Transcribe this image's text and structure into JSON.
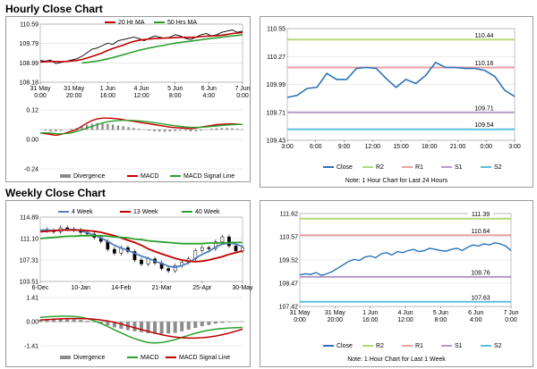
{
  "sections": {
    "hourly_title": "Hourly Close Chart",
    "weekly_title": "Weekly Close Chart",
    "hourly_note": "Note: 1 Hour Chart for Last 24 Hours",
    "weekly_note": "Note: 1 Hour Chart for Last 1 Week"
  },
  "colors": {
    "price": "#000000",
    "ma20": "#c00000",
    "ma50": "#2ca02c",
    "wk4": "#4f81bd",
    "wk13": "#c00000",
    "wk40": "#2ca02c",
    "close": "#2a73b8",
    "r2": "#b5d776",
    "r1": "#e8a0a0",
    "s1": "#b39ac7",
    "s2": "#5bc0de",
    "divergence": "#8c8c8c",
    "macd": "#c00000",
    "signal": "#2ca02c"
  },
  "chart_data": [
    {
      "id": "hourly-price",
      "type": "line",
      "legend": [
        "20 Hr MA",
        "50 Hrs MA"
      ],
      "yticks": [
        "110.59",
        "109.79",
        "108.99",
        "108.18"
      ],
      "ylim": [
        108.18,
        110.59
      ],
      "xticks": [
        "31 May\n0:00",
        "31 May\n20:00",
        "1 Jun\n16:00",
        "4 Jun\n12:00",
        "5 Jun\n8:00",
        "6 Jun\n4:00",
        "7 Jun\n0:00"
      ],
      "series": [
        {
          "name": "Price",
          "values": [
            109.08,
            109.05,
            109.1,
            108.95,
            109.0,
            109.05,
            109.1,
            109.15,
            109.25,
            109.4,
            109.55,
            109.6,
            109.7,
            109.8,
            109.75,
            109.9,
            109.95,
            110.0,
            110.05,
            110.0,
            109.9,
            110.0,
            110.1,
            110.05,
            110.0,
            110.05,
            110.15,
            110.1,
            110.0,
            109.95,
            110.05,
            110.15,
            110.2,
            110.1,
            110.15,
            110.25,
            110.3,
            110.35,
            110.25,
            110.3
          ]
        },
        {
          "name": "20 Hr MA",
          "values": [
            109.02,
            109.03,
            109.04,
            109.04,
            109.03,
            109.04,
            109.06,
            109.08,
            109.12,
            109.18,
            109.25,
            109.32,
            109.4,
            109.5,
            109.58,
            109.65,
            109.72,
            109.8,
            109.87,
            109.92,
            109.95,
            109.97,
            109.99,
            110.0,
            110.01,
            110.02,
            110.03,
            110.04,
            110.04,
            110.04,
            110.05,
            110.07,
            110.09,
            110.1,
            110.11,
            110.13,
            110.16,
            110.2,
            110.22,
            110.24
          ]
        },
        {
          "name": "50 Hrs MA",
          "values": [
            null,
            null,
            null,
            null,
            null,
            null,
            null,
            null,
            108.98,
            109.0,
            109.03,
            109.06,
            109.1,
            109.15,
            109.2,
            109.26,
            109.32,
            109.38,
            109.44,
            109.5,
            109.55,
            109.6,
            109.64,
            109.68,
            109.72,
            109.76,
            109.8,
            109.83,
            109.86,
            109.88,
            109.91,
            109.94,
            109.97,
            110.0,
            110.02,
            110.05,
            110.08,
            110.1,
            110.12,
            110.14
          ]
        }
      ]
    },
    {
      "id": "hourly-macd",
      "type": "bar",
      "legend": [
        "Divergence",
        "MACD",
        "MACD Signal Line"
      ],
      "yticks": [
        "0.12",
        "0.00",
        "-0.24"
      ],
      "ylim": [
        -0.24,
        0.12
      ],
      "series": [
        {
          "name": "Divergence",
          "values": [
            0.0,
            -0.005,
            -0.01,
            -0.01,
            -0.005,
            0.0,
            0.005,
            0.01,
            0.02,
            0.03,
            0.035,
            0.04,
            0.04,
            0.035,
            0.03,
            0.025,
            0.02,
            0.015,
            0.01,
            0.005,
            0.0,
            -0.005,
            -0.01,
            -0.01,
            -0.012,
            -0.01,
            -0.008,
            -0.005,
            -0.005,
            -0.01,
            -0.008,
            -0.005,
            0.0,
            0.005,
            0.008,
            0.01,
            0.01,
            0.008,
            0.005,
            0.003
          ]
        },
        {
          "name": "MACD",
          "values": [
            -0.02,
            -0.025,
            -0.03,
            -0.035,
            -0.03,
            -0.02,
            -0.01,
            0.0,
            0.02,
            0.04,
            0.055,
            0.065,
            0.07,
            0.07,
            0.068,
            0.065,
            0.06,
            0.055,
            0.05,
            0.045,
            0.04,
            0.035,
            0.03,
            0.025,
            0.02,
            0.015,
            0.012,
            0.01,
            0.008,
            0.005,
            0.01,
            0.015,
            0.02,
            0.025,
            0.03,
            0.032,
            0.034,
            0.035,
            0.033,
            0.03
          ]
        },
        {
          "name": "MACD Signal Line",
          "values": [
            -0.02,
            -0.02,
            -0.022,
            -0.025,
            -0.026,
            -0.024,
            -0.02,
            -0.012,
            -0.002,
            0.01,
            0.02,
            0.03,
            0.04,
            0.048,
            0.052,
            0.055,
            0.056,
            0.056,
            0.055,
            0.053,
            0.05,
            0.046,
            0.042,
            0.037,
            0.032,
            0.027,
            0.023,
            0.019,
            0.016,
            0.013,
            0.013,
            0.014,
            0.016,
            0.019,
            0.022,
            0.025,
            0.028,
            0.03,
            0.031,
            0.031
          ]
        }
      ]
    },
    {
      "id": "hourly-close-24h",
      "type": "line",
      "yticks": [
        "110.55",
        "110.27",
        "109.99",
        "109.71",
        "109.43"
      ],
      "ylim": [
        109.43,
        110.55
      ],
      "xticks": [
        "3:00",
        "6:00",
        "9:00",
        "12:00",
        "15:00",
        "18:00",
        "21:00",
        "0:00",
        "3:00"
      ],
      "levels": [
        {
          "name": "R2",
          "value": 110.44,
          "label": "110.44"
        },
        {
          "name": "R1",
          "value": 110.16,
          "label": "110.16"
        },
        {
          "name": "S1",
          "value": 109.71,
          "label": "109.71"
        },
        {
          "name": "S2",
          "value": 109.54,
          "label": "109.54"
        }
      ],
      "legend": [
        "Close",
        "R2",
        "R1",
        "S1",
        "S2"
      ],
      "series": [
        {
          "name": "Close",
          "values": [
            109.86,
            109.88,
            109.95,
            109.96,
            110.1,
            110.04,
            110.04,
            110.15,
            110.16,
            110.15,
            110.05,
            109.96,
            110.04,
            110.0,
            110.08,
            110.21,
            110.16,
            110.16,
            110.15,
            110.15,
            110.13,
            110.07,
            109.93,
            109.87
          ]
        }
      ]
    },
    {
      "id": "weekly-price",
      "type": "line",
      "legend": [
        "4 Week",
        "13 Week",
        "40 Week"
      ],
      "yticks": [
        "114.89",
        "111.10",
        "107.31",
        "103.51"
      ],
      "ylim": [
        103.51,
        114.89
      ],
      "xticks": [
        "6-Dec",
        "10-Jan",
        "14-Feb",
        "21-Mar",
        "25-Apr",
        "30-May"
      ],
      "series": [
        {
          "name": "Price",
          "values": [
            112.7,
            112.5,
            112.3,
            113.0,
            112.8,
            112.6,
            112.2,
            111.9,
            111.3,
            110.6,
            109.2,
            108.5,
            109.5,
            108.8,
            107.3,
            106.6,
            107.5,
            106.8,
            105.8,
            105.4,
            106.3,
            106.9,
            107.5,
            109.0,
            109.5,
            109.3,
            110.5,
            111.4,
            109.8,
            108.9,
            109.5
          ]
        },
        {
          "name": "4 Week",
          "values": [
            112.6,
            112.6,
            112.5,
            112.6,
            112.7,
            112.7,
            112.5,
            112.1,
            111.7,
            111.2,
            110.6,
            109.9,
            109.4,
            109.0,
            108.5,
            108.0,
            107.6,
            107.1,
            106.7,
            106.2,
            106.0,
            106.3,
            106.8,
            107.6,
            108.3,
            108.8,
            109.6,
            110.1,
            110.3,
            110.1,
            109.7
          ]
        },
        {
          "name": "13 Week",
          "values": [
            112.3,
            112.4,
            112.5,
            112.6,
            112.6,
            112.6,
            112.6,
            112.5,
            112.4,
            112.2,
            111.9,
            111.6,
            111.2,
            110.8,
            110.4,
            109.9,
            109.3,
            108.8,
            108.4,
            108.0,
            107.6,
            107.3,
            107.1,
            107.0,
            107.1,
            107.3,
            107.6,
            107.9,
            108.3,
            108.6,
            108.9
          ]
        },
        {
          "name": "40 Week",
          "values": [
            111.1,
            111.2,
            111.3,
            111.4,
            111.5,
            111.5,
            111.6,
            111.6,
            111.6,
            111.6,
            111.5,
            111.4,
            111.3,
            111.2,
            111.0,
            110.9,
            110.7,
            110.6,
            110.5,
            110.4,
            110.3,
            110.2,
            110.2,
            110.2,
            110.2,
            110.3,
            110.3,
            110.3,
            110.4,
            110.4,
            110.4
          ]
        }
      ]
    },
    {
      "id": "weekly-macd",
      "type": "bar",
      "legend": [
        "Divergence",
        "MACD",
        "MACD Signal Line"
      ],
      "yticks": [
        "1.41",
        "0.00",
        "-1.41"
      ],
      "ylim": [
        -1.41,
        1.41
      ],
      "series": [
        {
          "name": "Divergence",
          "values": [
            0.12,
            0.14,
            0.15,
            0.16,
            0.15,
            0.13,
            0.1,
            0.05,
            -0.02,
            -0.1,
            -0.2,
            -0.32,
            -0.4,
            -0.48,
            -0.55,
            -0.6,
            -0.66,
            -0.7,
            -0.7,
            -0.68,
            -0.64,
            -0.55,
            -0.45,
            -0.35,
            -0.25,
            -0.18,
            -0.1,
            -0.05,
            -0.02,
            0.0,
            0.02
          ]
        },
        {
          "name": "MACD",
          "values": [
            0.25,
            0.28,
            0.3,
            0.32,
            0.32,
            0.3,
            0.26,
            0.18,
            0.05,
            -0.1,
            -0.28,
            -0.48,
            -0.66,
            -0.84,
            -1.0,
            -1.12,
            -1.22,
            -1.25,
            -1.22,
            -1.15,
            -1.05,
            -0.92,
            -0.8,
            -0.68,
            -0.58,
            -0.5,
            -0.44,
            -0.4,
            -0.37,
            -0.35,
            -0.34
          ]
        },
        {
          "name": "MACD Signal Line",
          "values": [
            0.1,
            0.12,
            0.14,
            0.16,
            0.18,
            0.18,
            0.18,
            0.17,
            0.14,
            0.1,
            0.04,
            -0.04,
            -0.14,
            -0.25,
            -0.36,
            -0.47,
            -0.57,
            -0.67,
            -0.76,
            -0.84,
            -0.9,
            -0.94,
            -0.96,
            -0.96,
            -0.94,
            -0.9,
            -0.84,
            -0.76,
            -0.67,
            -0.56,
            -0.44
          ]
        }
      ]
    },
    {
      "id": "weekly-close-1w",
      "type": "line",
      "yticks": [
        "111.62",
        "110.57",
        "109.52",
        "108.47",
        "107.42"
      ],
      "ylim": [
        107.42,
        111.62
      ],
      "xticks": [
        "31 May\n0:00",
        "31 May\n20:00",
        "1 Jun\n16:00",
        "4 Jun\n12:00",
        "5 Jun\n8:00",
        "6 Jun\n4:00",
        "7 Jun\n0:00"
      ],
      "levels": [
        {
          "name": "R2",
          "value": 111.39,
          "label": "111.39"
        },
        {
          "name": "R1",
          "value": 110.64,
          "label": "110.64"
        },
        {
          "name": "S1",
          "value": 108.76,
          "label": "108.76"
        },
        {
          "name": "S2",
          "value": 107.63,
          "label": "107.63"
        }
      ],
      "legend": [
        "Close",
        "R2",
        "R1",
        "S1",
        "S2"
      ],
      "series": [
        {
          "name": "Close",
          "values": [
            108.85,
            108.9,
            108.87,
            108.95,
            108.82,
            108.9,
            109.0,
            109.15,
            109.3,
            109.45,
            109.55,
            109.5,
            109.65,
            109.7,
            109.62,
            109.8,
            109.85,
            109.75,
            109.9,
            109.85,
            109.95,
            110.0,
            109.9,
            109.95,
            110.05,
            110.0,
            109.95,
            109.92,
            110.0,
            110.05,
            109.95,
            110.1,
            110.2,
            110.15,
            110.25,
            110.2,
            110.3,
            110.25,
            110.15,
            109.95
          ]
        }
      ]
    }
  ]
}
